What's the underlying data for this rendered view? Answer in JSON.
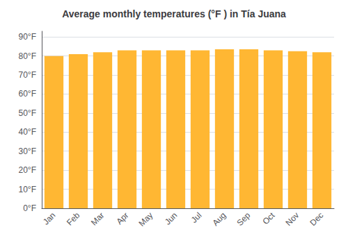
{
  "chart_data": {
    "type": "bar",
    "title": "Average monthly temperatures (°F ) in Tía Juana",
    "categories": [
      "Jan",
      "Feb",
      "Mar",
      "Apr",
      "May",
      "Jun",
      "Jul",
      "Aug",
      "Sep",
      "Oct",
      "Nov",
      "Dec"
    ],
    "values": [
      80.0,
      81.0,
      82.0,
      83.0,
      83.0,
      83.0,
      83.0,
      83.5,
      83.5,
      83.0,
      82.5,
      82.0
    ],
    "color": "#FFB733",
    "ylim": [
      0,
      93
    ],
    "yticks": [
      {
        "value": 0,
        "label": "0°F"
      },
      {
        "value": 10,
        "label": "10°F"
      },
      {
        "value": 20,
        "label": "20°F"
      },
      {
        "value": 30,
        "label": "30°F"
      },
      {
        "value": 40,
        "label": "40°F"
      },
      {
        "value": 50,
        "label": "50°F"
      },
      {
        "value": 60,
        "label": "60°F"
      },
      {
        "value": 70,
        "label": "70°F"
      },
      {
        "value": 80,
        "label": "80°F"
      },
      {
        "value": 90,
        "label": "90°F"
      }
    ],
    "grid": true
  }
}
